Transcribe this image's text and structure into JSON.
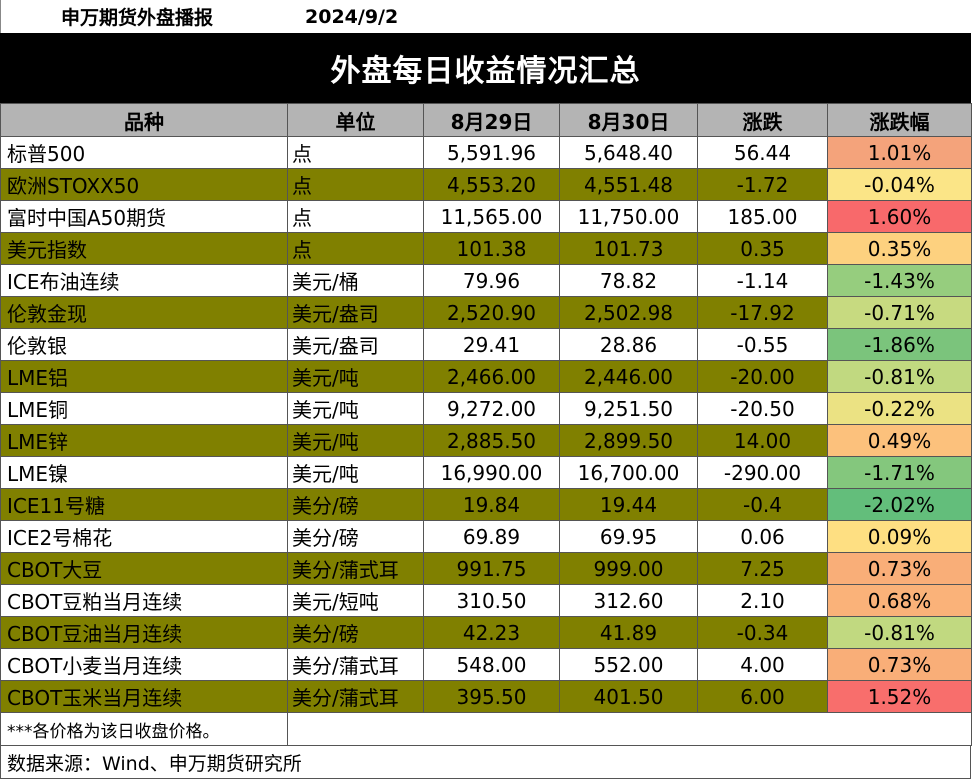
{
  "header": {
    "org": "申万期货外盘播报",
    "date": "2024/9/2"
  },
  "banner": {
    "title": "外盘每日收益情况汇总"
  },
  "table": {
    "columns": [
      "品种",
      "单位",
      "8月29日",
      "8月30日",
      "涨跌",
      "涨跌幅"
    ],
    "rows": [
      {
        "name": "标普500",
        "unit": "点",
        "d1": "5,591.96",
        "d2": "5,648.40",
        "chg": "56.44",
        "pct": "1.01%",
        "pct_color": "#f4a37b"
      },
      {
        "name": "欧洲STOXX50",
        "unit": "点",
        "d1": "4,553.20",
        "d2": "4,551.48",
        "chg": "-1.72",
        "pct": "-0.04%",
        "pct_color": "#fbe587"
      },
      {
        "name": "富时中国A50期货",
        "unit": "点",
        "d1": "11,565.00",
        "d2": "11,750.00",
        "chg": "185.00",
        "pct": "1.60%",
        "pct_color": "#f8696b"
      },
      {
        "name": "美元指数",
        "unit": "点",
        "d1": "101.38",
        "d2": "101.73",
        "chg": "0.35",
        "pct": "0.35%",
        "pct_color": "#fdd17f"
      },
      {
        "name": "ICE布油连续",
        "unit": "美元/桶",
        "d1": "79.96",
        "d2": "78.82",
        "chg": "-1.14",
        "pct": "-1.43%",
        "pct_color": "#96cd7e"
      },
      {
        "name": "伦敦金现",
        "unit": "美元/盎司",
        "d1": "2,520.90",
        "d2": "2,502.98",
        "chg": "-17.92",
        "pct": "-0.71%",
        "pct_color": "#c7da80"
      },
      {
        "name": "伦敦银",
        "unit": "美元/盎司",
        "d1": "29.41",
        "d2": "28.86",
        "chg": "-0.55",
        "pct": "-1.86%",
        "pct_color": "#7bc47c"
      },
      {
        "name": "LME铝",
        "unit": "美元/吨",
        "d1": "2,466.00",
        "d2": "2,446.00",
        "chg": "-20.00",
        "pct": "-0.81%",
        "pct_color": "#c1d980"
      },
      {
        "name": "LME铜",
        "unit": "美元/吨",
        "d1": "9,272.00",
        "d2": "9,251.50",
        "chg": "-20.50",
        "pct": "-0.22%",
        "pct_color": "#ebe283"
      },
      {
        "name": "LME锌",
        "unit": "美元/吨",
        "d1": "2,885.50",
        "d2": "2,899.50",
        "chg": "14.00",
        "pct": "0.49%",
        "pct_color": "#fcc17c"
      },
      {
        "name": "LME镍",
        "unit": "美元/吨",
        "d1": "16,990.00",
        "d2": "16,700.00",
        "chg": "-290.00",
        "pct": "-1.71%",
        "pct_color": "#84c77d"
      },
      {
        "name": "ICE11号糖",
        "unit": "美分/磅",
        "d1": "19.84",
        "d2": "19.44",
        "chg": "-0.4",
        "pct": "-2.02%",
        "pct_color": "#63be7b"
      },
      {
        "name": "ICE2号棉花",
        "unit": "美分/磅",
        "d1": "69.89",
        "d2": "69.95",
        "chg": "0.06",
        "pct": "0.09%",
        "pct_color": "#fedf82"
      },
      {
        "name": "CBOT大豆",
        "unit": "美分/蒲式耳",
        "d1": "991.75",
        "d2": "999.00",
        "chg": "7.25",
        "pct": "0.73%",
        "pct_color": "#f9ae78"
      },
      {
        "name": "CBOT豆粕当月连续",
        "unit": "美元/短吨",
        "d1": "310.50",
        "d2": "312.60",
        "chg": "2.10",
        "pct": "0.68%",
        "pct_color": "#fab279"
      },
      {
        "name": "CBOT豆油当月连续",
        "unit": "美分/磅",
        "d1": "42.23",
        "d2": "41.89",
        "chg": "-0.34",
        "pct": "-0.81%",
        "pct_color": "#c1d980"
      },
      {
        "name": "CBOT小麦当月连续",
        "unit": "美分/蒲式耳",
        "d1": "548.00",
        "d2": "552.00",
        "chg": "4.00",
        "pct": "0.73%",
        "pct_color": "#f9ae78"
      },
      {
        "name": "CBOT玉米当月连续",
        "unit": "美分/蒲式耳",
        "d1": "395.50",
        "d2": "401.50",
        "chg": "6.00",
        "pct": "1.52%",
        "pct_color": "#f86e6c"
      }
    ]
  },
  "note": "***各价格为该日收盘价格。",
  "footer": {
    "source": "数据来源：Wind、申万期货研究所"
  },
  "colors": {
    "alt_row": "#808000",
    "header_bg": "#b4b4b4",
    "banner_bg": "#000000"
  }
}
